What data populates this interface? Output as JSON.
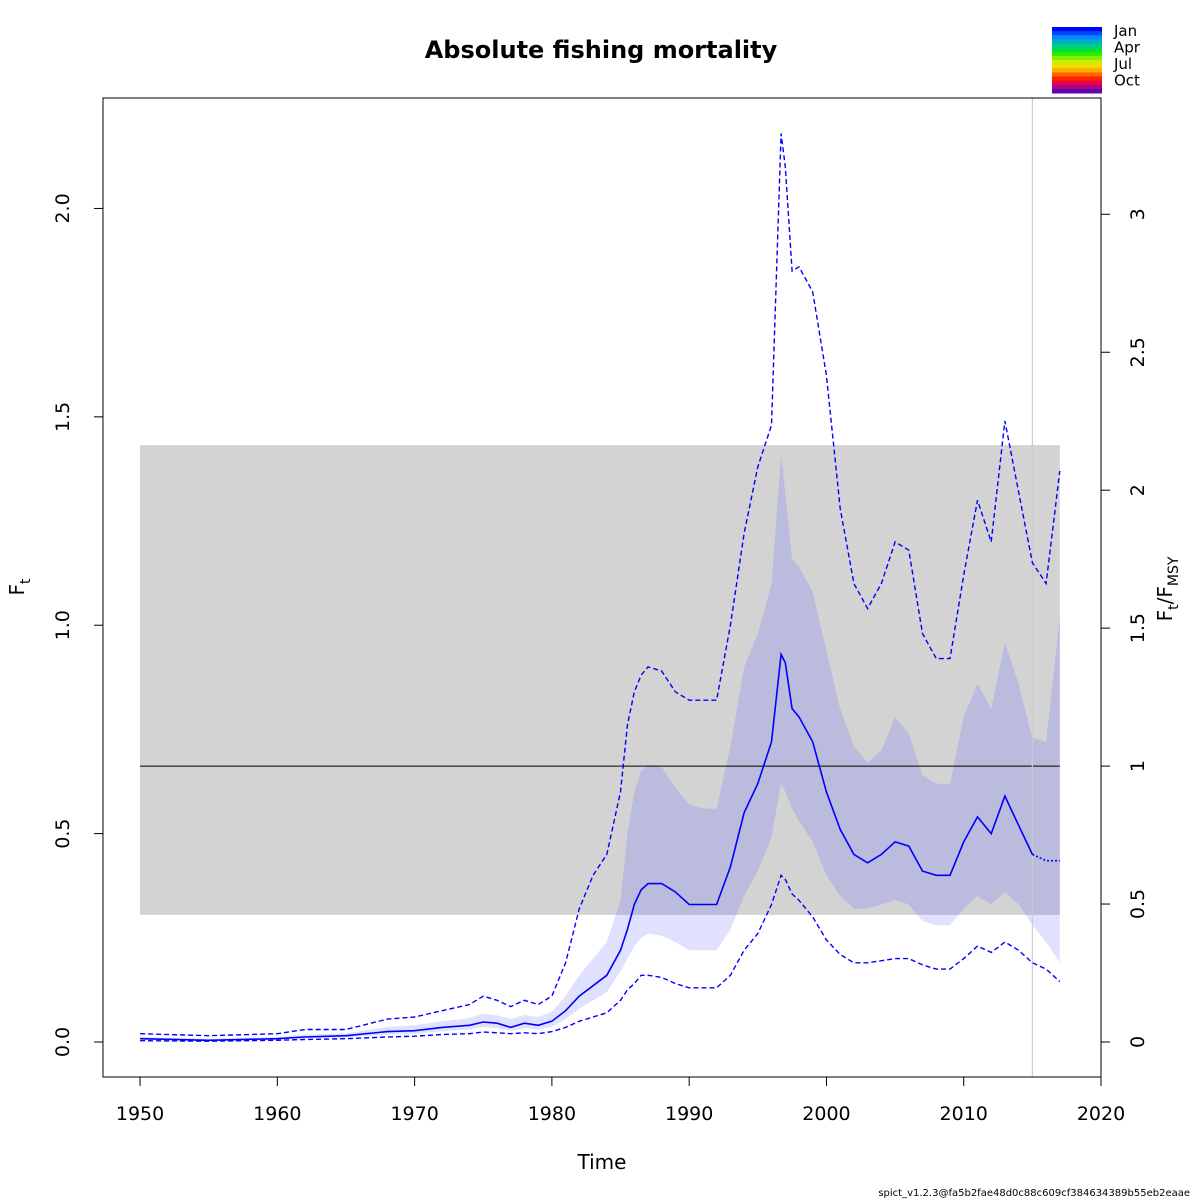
{
  "chart_data": {
    "type": "line",
    "title": "Absolute fishing mortality",
    "xlabel": "Time",
    "ylabel": "F",
    "ylabel_sub": "t",
    "y2label": "F",
    "y2label_sub1": "t",
    "y2label_mid": "/F",
    "y2label_sub2": "MSY",
    "xlim": [
      1947.3,
      2020
    ],
    "ylim": [
      -0.084,
      2.265
    ],
    "x_ticks": [
      1950,
      1960,
      1970,
      1980,
      1990,
      2000,
      2010,
      2020
    ],
    "x_tick_labels": [
      "1950",
      "1960",
      "1970",
      "1980",
      "1990",
      "2000",
      "2010",
      "2020"
    ],
    "y_ticks": [
      0,
      0.5,
      1,
      1.5,
      2
    ],
    "y_tick_labels": [
      "0.0",
      "0.5",
      "1.0",
      "1.5",
      "2.0"
    ],
    "y2_ticks": [
      0,
      0.5,
      1,
      1.5,
      2,
      2.5,
      3
    ],
    "y2_tick_labels": [
      "0",
      "0.5",
      "1",
      "1.5",
      "2",
      "2.5",
      "3"
    ],
    "fmsy": 0.662,
    "fmsy_ci": [
      0.305,
      1.432
    ],
    "fmsy_span": [
      1950,
      2017
    ],
    "last_obs_time": 2015,
    "colors": {
      "estimate": "#0000ff",
      "ci_fill": "#e0e0ff",
      "fmsy_band": "#d3d3d3",
      "fmsy_overlap": "#bbbbdd",
      "fmsy_line": "#000000",
      "vline": "#cccccc"
    },
    "series": [
      {
        "x": [
          1950,
          1955,
          1960,
          1962,
          1965,
          1968,
          1970,
          1972,
          1974,
          1975,
          1976,
          1977,
          1978,
          1979,
          1980,
          1981,
          1982,
          1983,
          1984,
          1985,
          1985.5,
          1986,
          1986.5,
          1987,
          1988,
          1989,
          1990,
          1991,
          1992,
          1993,
          1994,
          1995,
          1996,
          1996.7,
          1997,
          1997.5,
          1998,
          1999,
          2000,
          2001,
          2002,
          2003,
          2004,
          2005,
          2006,
          2007,
          2008,
          2009,
          2010,
          2011,
          2012,
          2013,
          2014,
          2015,
          2016,
          2017
        ],
        "est": [
          0.008,
          0.004,
          0.008,
          0.012,
          0.015,
          0.025,
          0.027,
          0.035,
          0.04,
          0.048,
          0.045,
          0.035,
          0.045,
          0.04,
          0.05,
          0.075,
          0.11,
          0.135,
          0.16,
          0.22,
          0.27,
          0.33,
          0.365,
          0.38,
          0.38,
          0.36,
          0.33,
          0.33,
          0.33,
          0.42,
          0.55,
          0.62,
          0.72,
          0.93,
          0.91,
          0.8,
          0.78,
          0.72,
          0.6,
          0.51,
          0.45,
          0.43,
          0.45,
          0.48,
          0.47,
          0.41,
          0.4,
          0.4,
          0.48,
          0.54,
          0.5,
          0.59,
          0.52,
          0.45,
          0.435,
          0.435
        ],
        "lo": [
          0.003,
          0.002,
          0.004,
          0.006,
          0.008,
          0.012,
          0.014,
          0.018,
          0.02,
          0.024,
          0.022,
          0.02,
          0.022,
          0.02,
          0.025,
          0.035,
          0.05,
          0.06,
          0.07,
          0.1,
          0.125,
          0.14,
          0.16,
          0.16,
          0.155,
          0.14,
          0.13,
          0.13,
          0.13,
          0.16,
          0.22,
          0.26,
          0.33,
          0.4,
          0.39,
          0.355,
          0.34,
          0.3,
          0.245,
          0.21,
          0.19,
          0.19,
          0.195,
          0.2,
          0.2,
          0.185,
          0.175,
          0.175,
          0.2,
          0.23,
          0.215,
          0.24,
          0.22,
          0.19,
          0.175,
          0.145
        ],
        "hi": [
          0.02,
          0.015,
          0.02,
          0.03,
          0.03,
          0.055,
          0.06,
          0.075,
          0.09,
          0.11,
          0.1,
          0.085,
          0.1,
          0.09,
          0.11,
          0.19,
          0.32,
          0.4,
          0.45,
          0.6,
          0.76,
          0.84,
          0.88,
          0.9,
          0.89,
          0.84,
          0.82,
          0.82,
          0.82,
          1.0,
          1.22,
          1.38,
          1.48,
          2.18,
          2.1,
          1.85,
          1.86,
          1.8,
          1.6,
          1.28,
          1.1,
          1.04,
          1.1,
          1.2,
          1.18,
          0.98,
          0.92,
          0.92,
          1.12,
          1.3,
          1.2,
          1.49,
          1.32,
          1.15,
          1.1,
          1.37
        ],
        "ci50_lo": [
          0.005,
          0.003,
          0.006,
          0.009,
          0.011,
          0.018,
          0.02,
          0.026,
          0.03,
          0.036,
          0.033,
          0.027,
          0.033,
          0.03,
          0.037,
          0.055,
          0.08,
          0.1,
          0.12,
          0.17,
          0.2,
          0.23,
          0.25,
          0.26,
          0.255,
          0.24,
          0.22,
          0.22,
          0.22,
          0.27,
          0.35,
          0.41,
          0.49,
          0.62,
          0.6,
          0.56,
          0.53,
          0.48,
          0.4,
          0.35,
          0.32,
          0.32,
          0.33,
          0.34,
          0.33,
          0.29,
          0.28,
          0.28,
          0.32,
          0.35,
          0.33,
          0.36,
          0.33,
          0.28,
          0.24,
          0.19
        ],
        "ci50_hi": [
          0.012,
          0.008,
          0.012,
          0.018,
          0.021,
          0.036,
          0.04,
          0.05,
          0.057,
          0.068,
          0.064,
          0.055,
          0.065,
          0.06,
          0.072,
          0.11,
          0.16,
          0.2,
          0.24,
          0.34,
          0.5,
          0.6,
          0.65,
          0.665,
          0.66,
          0.61,
          0.57,
          0.56,
          0.56,
          0.71,
          0.9,
          0.98,
          1.1,
          1.41,
          1.32,
          1.16,
          1.14,
          1.08,
          0.94,
          0.8,
          0.71,
          0.67,
          0.7,
          0.78,
          0.74,
          0.64,
          0.62,
          0.62,
          0.78,
          0.86,
          0.8,
          0.96,
          0.86,
          0.73,
          0.72,
          1.02
        ]
      }
    ],
    "legend": {
      "labels": [
        "Jan",
        "Apr",
        "Jul",
        "Oct"
      ],
      "colors": [
        "#0000ff",
        "#0044ff",
        "#0088ff",
        "#00aacc",
        "#00cc88",
        "#00dd44",
        "#22ee00",
        "#88ee00",
        "#ccee00",
        "#eedd00",
        "#ffaa00",
        "#ff6600",
        "#ff2200",
        "#ee0044",
        "#aa0088",
        "#6600aa"
      ]
    }
  },
  "footer": {
    "text": "spict_v1.2.3@fa5b2fae48d0c88c609cf384634389b55eb2eaae"
  }
}
